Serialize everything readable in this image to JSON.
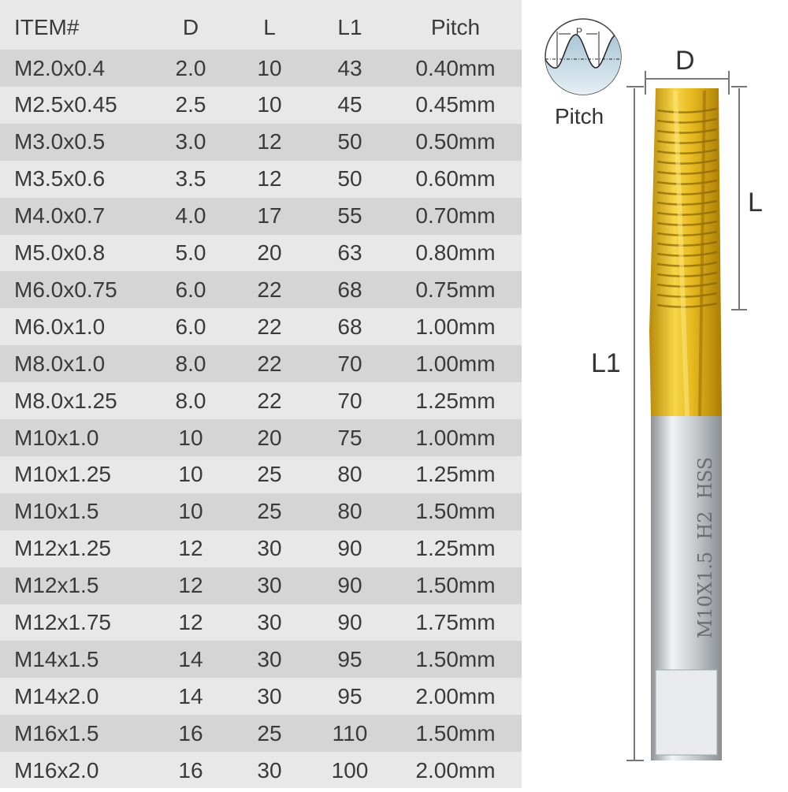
{
  "table": {
    "headers": [
      "ITEM#",
      "D",
      "L",
      "L1",
      "Pitch"
    ],
    "rows": [
      [
        "M2.0x0.4",
        "2.0",
        "10",
        "43",
        "0.40mm"
      ],
      [
        "M2.5x0.45",
        "2.5",
        "10",
        "45",
        "0.45mm"
      ],
      [
        "M3.0x0.5",
        "3.0",
        "12",
        "50",
        "0.50mm"
      ],
      [
        "M3.5x0.6",
        "3.5",
        "12",
        "50",
        "0.60mm"
      ],
      [
        "M4.0x0.7",
        "4.0",
        "17",
        "55",
        "0.70mm"
      ],
      [
        "M5.0x0.8",
        "5.0",
        "20",
        "63",
        "0.80mm"
      ],
      [
        "M6.0x0.75",
        "6.0",
        "22",
        "68",
        "0.75mm"
      ],
      [
        "M6.0x1.0",
        "6.0",
        "22",
        "68",
        "1.00mm"
      ],
      [
        "M8.0x1.0",
        "8.0",
        "22",
        "70",
        "1.00mm"
      ],
      [
        "M8.0x1.25",
        "8.0",
        "22",
        "70",
        "1.25mm"
      ],
      [
        "M10x1.0",
        "10",
        "20",
        "75",
        "1.00mm"
      ],
      [
        "M10x1.25",
        "10",
        "25",
        "80",
        "1.25mm"
      ],
      [
        "M10x1.5",
        "10",
        "25",
        "80",
        "1.50mm"
      ],
      [
        "M12x1.25",
        "12",
        "30",
        "90",
        "1.25mm"
      ],
      [
        "M12x1.5",
        "12",
        "30",
        "90",
        "1.50mm"
      ],
      [
        "M12x1.75",
        "12",
        "30",
        "90",
        "1.75mm"
      ],
      [
        "M14x1.5",
        "14",
        "30",
        "95",
        "1.50mm"
      ],
      [
        "M14x2.0",
        "14",
        "30",
        "95",
        "2.00mm"
      ],
      [
        "M16x1.5",
        "16",
        "25",
        "110",
        "1.50mm"
      ],
      [
        "M16x2.0",
        "16",
        "30",
        "100",
        "2.00mm"
      ]
    ]
  },
  "diagram": {
    "pitch_label": "Pitch",
    "pitch_symbol": "P",
    "d_label": "D",
    "l_label": "L",
    "l1_label": "L1",
    "shank_marking": "M10X1.5  H2  HSS"
  },
  "colors": {
    "row_light": "#e8e8e8",
    "row_dark": "#d5d5d5",
    "tap_gold": "#e2b51e",
    "shank_silver": "#c8ccd0"
  }
}
